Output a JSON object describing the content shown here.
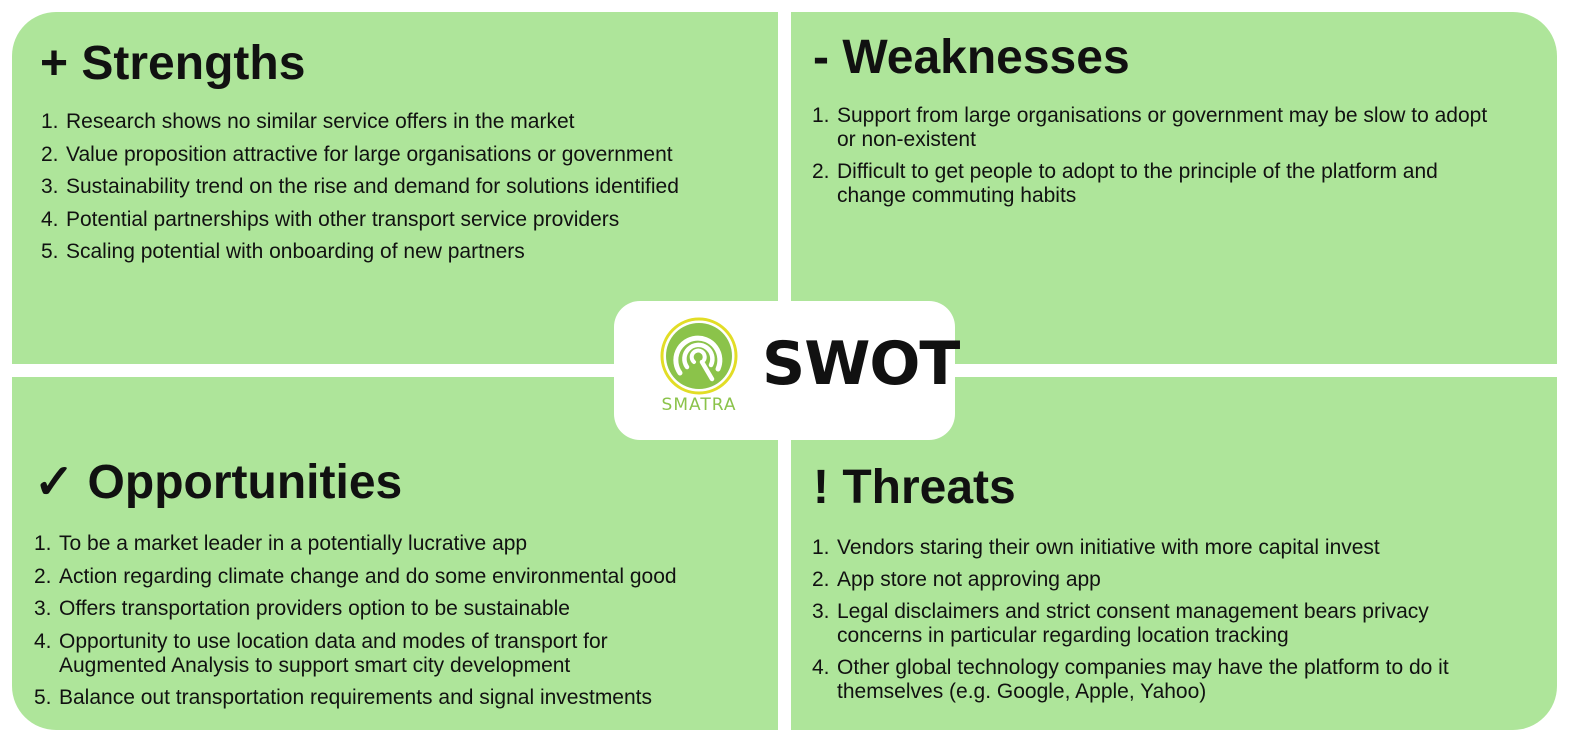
{
  "center": {
    "logo_text": "SMATRA",
    "title": "SWOT",
    "logo_color_outer": "#e2dd26",
    "logo_color_inner": "#8bc34a"
  },
  "colors": {
    "quadrant_fill": "#aee59a",
    "background": "#ffffff"
  },
  "strengths": {
    "title": "+ Strengths",
    "items": [
      {
        "num": "1.",
        "text": "Research shows no similar service offers in the market"
      },
      {
        "num": "2.",
        "text": "Value proposition attractive for large organisations or government"
      },
      {
        "num": "3.",
        "text": "Sustainability trend on the rise and demand for solutions identified"
      },
      {
        "num": "4.",
        "text": "Potential partnerships with other transport service providers"
      },
      {
        "num": "5.",
        "text": "Scaling potential with onboarding of new partners"
      }
    ]
  },
  "weaknesses": {
    "title": "- Weaknesses",
    "items": [
      {
        "num": "1.",
        "text": "Support from large organisations or government may be slow to adopt or non-existent"
      },
      {
        "num": "2.",
        "text": "Difficult to get people to adopt to the principle of the platform and change commuting habits"
      }
    ]
  },
  "opportunities": {
    "title": "✓ Opportunities",
    "items": [
      {
        "num": "1.",
        "text": "To be a market leader in a potentially lucrative app"
      },
      {
        "num": "2.",
        "text": "Action regarding climate change and do some environmental good"
      },
      {
        "num": "3.",
        "text": "Offers transportation providers option to be sustainable"
      },
      {
        "num": "4.",
        "text": "Opportunity to use location data and modes of transport for Augmented Analysis to support smart city development"
      },
      {
        "num": "5.",
        "text": "Balance out transportation requirements and signal investments"
      }
    ]
  },
  "threats": {
    "title": "! Threats",
    "items": [
      {
        "num": "1.",
        "text": "Vendors staring their own initiative with more capital invest"
      },
      {
        "num": "2.",
        "text": "App store not approving app"
      },
      {
        "num": "3.",
        "text": "Legal disclaimers and strict consent management bears privacy concerns in particular regarding location tracking"
      },
      {
        "num": "4.",
        "text": "Other global technology companies may have the platform to do it themselves (e.g. Google, Apple, Yahoo)"
      }
    ]
  }
}
